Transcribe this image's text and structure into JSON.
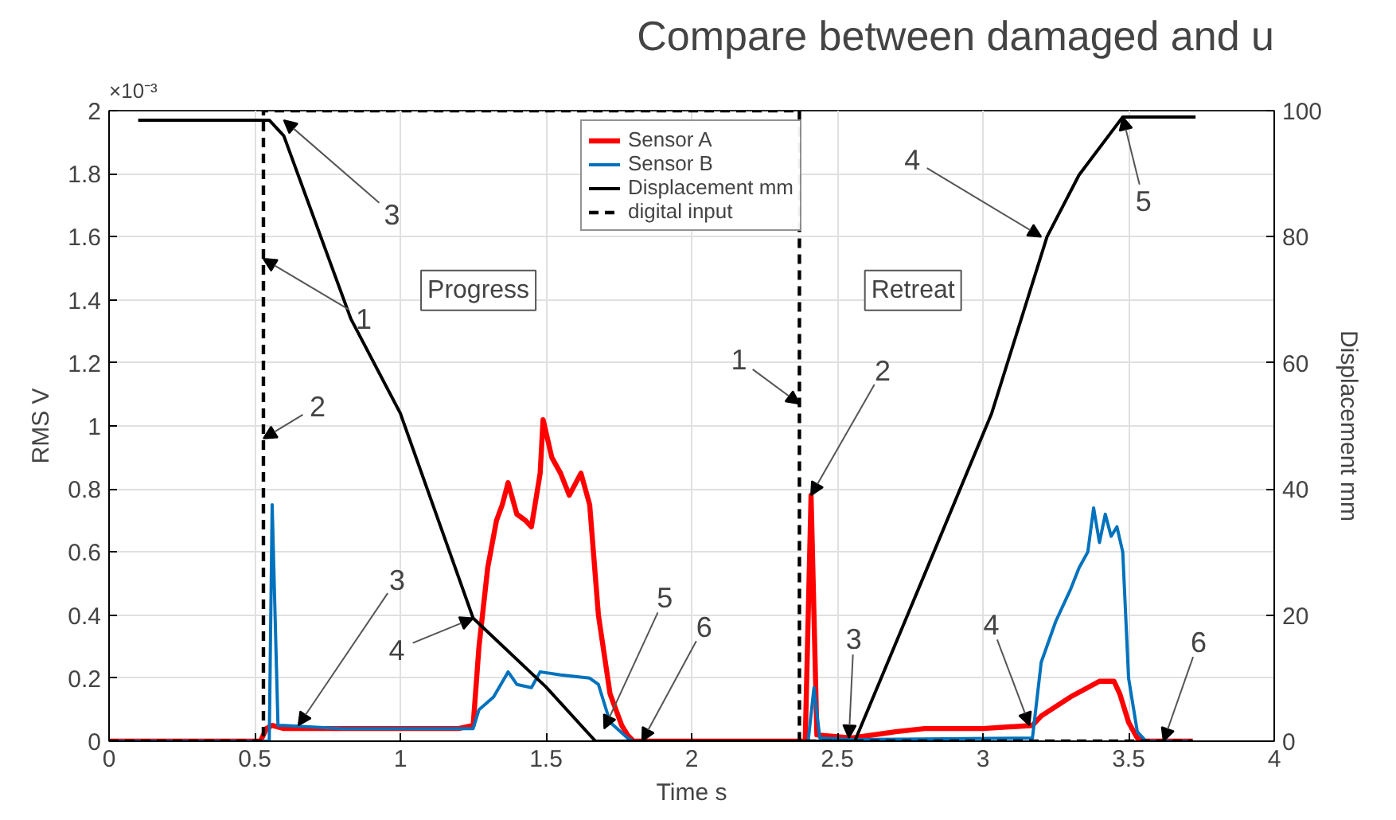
{
  "chart_data": {
    "type": "line",
    "title": "Compare between damaged and u",
    "xlabel": "Time s",
    "ylabel": "RMS V",
    "y2label": "Displacement mm",
    "xlim": [
      0,
      4
    ],
    "xticks": [
      0,
      0.5,
      1,
      1.5,
      2,
      2.5,
      3,
      3.5,
      4
    ],
    "ylim": [
      0,
      2
    ],
    "yticks": [
      0,
      0.2,
      0.4,
      0.6,
      0.8,
      1,
      1.2,
      1.4,
      1.6,
      1.8,
      2
    ],
    "y2lim": [
      0,
      100
    ],
    "y2ticks": [
      0,
      20,
      40,
      60,
      80,
      100
    ],
    "grid": true,
    "legend": "top",
    "marker": "none",
    "series": [
      {
        "name": "Sensor A",
        "color": "#ff0000",
        "x": [
          0,
          0.52,
          0.54,
          0.56,
          0.6,
          0.8,
          1.0,
          1.2,
          1.25,
          1.27,
          1.3,
          1.33,
          1.35,
          1.37,
          1.4,
          1.43,
          1.45,
          1.48,
          1.49,
          1.52,
          1.55,
          1.58,
          1.62,
          1.65,
          1.68,
          1.72,
          1.76,
          1.78,
          1.8,
          2.39,
          2.41,
          2.43,
          2.55,
          2.7,
          2.8,
          3.0,
          3.17,
          3.2,
          3.3,
          3.4,
          3.45,
          3.47,
          3.5,
          3.53,
          3.55,
          3.72
        ],
        "values": [
          0,
          0,
          0.04,
          0.05,
          0.04,
          0.04,
          0.04,
          0.04,
          0.05,
          0.3,
          0.55,
          0.7,
          0.75,
          0.82,
          0.72,
          0.7,
          0.68,
          0.85,
          1.02,
          0.9,
          0.85,
          0.78,
          0.85,
          0.75,
          0.4,
          0.15,
          0.05,
          0.02,
          0,
          0,
          0.78,
          0.02,
          0.01,
          0.03,
          0.04,
          0.04,
          0.05,
          0.08,
          0.14,
          0.19,
          0.19,
          0.15,
          0.06,
          0.01,
          0,
          0
        ]
      },
      {
        "name": "Sensor B",
        "color": "#0072bd",
        "x": [
          0,
          0.55,
          0.56,
          0.58,
          0.6,
          0.8,
          1.0,
          1.25,
          1.27,
          1.32,
          1.37,
          1.4,
          1.45,
          1.48,
          1.55,
          1.65,
          1.68,
          1.72,
          1.78,
          1.8,
          2.4,
          2.42,
          2.44,
          2.55,
          3.17,
          3.2,
          3.25,
          3.3,
          3.33,
          3.36,
          3.38,
          3.4,
          3.42,
          3.44,
          3.46,
          3.48,
          3.5,
          3.53,
          3.56,
          3.72
        ],
        "values": [
          0,
          0,
          0.75,
          0.05,
          0.05,
          0.04,
          0.04,
          0.04,
          0.1,
          0.14,
          0.22,
          0.18,
          0.17,
          0.22,
          0.21,
          0.2,
          0.18,
          0.06,
          0.01,
          0,
          0,
          0.17,
          0.01,
          0.005,
          0.01,
          0.25,
          0.38,
          0.48,
          0.55,
          0.6,
          0.74,
          0.63,
          0.72,
          0.65,
          0.68,
          0.6,
          0.2,
          0.03,
          0,
          0
        ]
      },
      {
        "name": "Displacement mm",
        "color": "#000000",
        "axis": "y2",
        "x": [
          0.1,
          0.55,
          0.6,
          0.83,
          1.0,
          1.25,
          1.5,
          1.67,
          2.56,
          2.8,
          3.03,
          3.22,
          3.33,
          3.48,
          3.73
        ],
        "values": [
          98.5,
          98.5,
          96,
          67,
          52,
          19.5,
          8.6,
          0,
          0,
          26.5,
          52,
          80,
          89.8,
          99,
          99
        ]
      },
      {
        "name": "digital input",
        "color": "#000000",
        "line_style": "dashed",
        "x": [
          0,
          0.53,
          0.53,
          2.37,
          2.37,
          3.72
        ],
        "values": [
          0,
          0,
          2,
          2,
          0,
          0
        ]
      }
    ],
    "annotations": [
      "Progress",
      "Retreat",
      "×10⁻³",
      {
        "text": "1",
        "x": 0.53,
        "y": 1.53
      },
      {
        "text": "2",
        "x": 0.53,
        "y": 0.96
      },
      {
        "text": "3",
        "x": 0.6,
        "y": 1.97
      },
      {
        "text": "3",
        "x": 0.65,
        "y": 0.05
      },
      {
        "text": "4",
        "x": 1.25,
        "y": 0.39
      },
      {
        "text": "5",
        "x": 1.7,
        "y": 0.04
      },
      {
        "text": "6",
        "x": 1.83,
        "y": 0
      },
      {
        "text": "1",
        "x": 2.37,
        "y": 1.07
      },
      {
        "text": "2",
        "x": 2.41,
        "y": 0.78
      },
      {
        "text": "4",
        "x": 3.2,
        "y": 1.6
      },
      {
        "text": "5",
        "x": 3.48,
        "y": 1.98
      },
      {
        "text": "3",
        "x": 2.54,
        "y": 0.01
      },
      {
        "text": "4",
        "x": 3.16,
        "y": 0.05
      },
      {
        "text": "6",
        "x": 3.62,
        "y": 0
      }
    ]
  }
}
